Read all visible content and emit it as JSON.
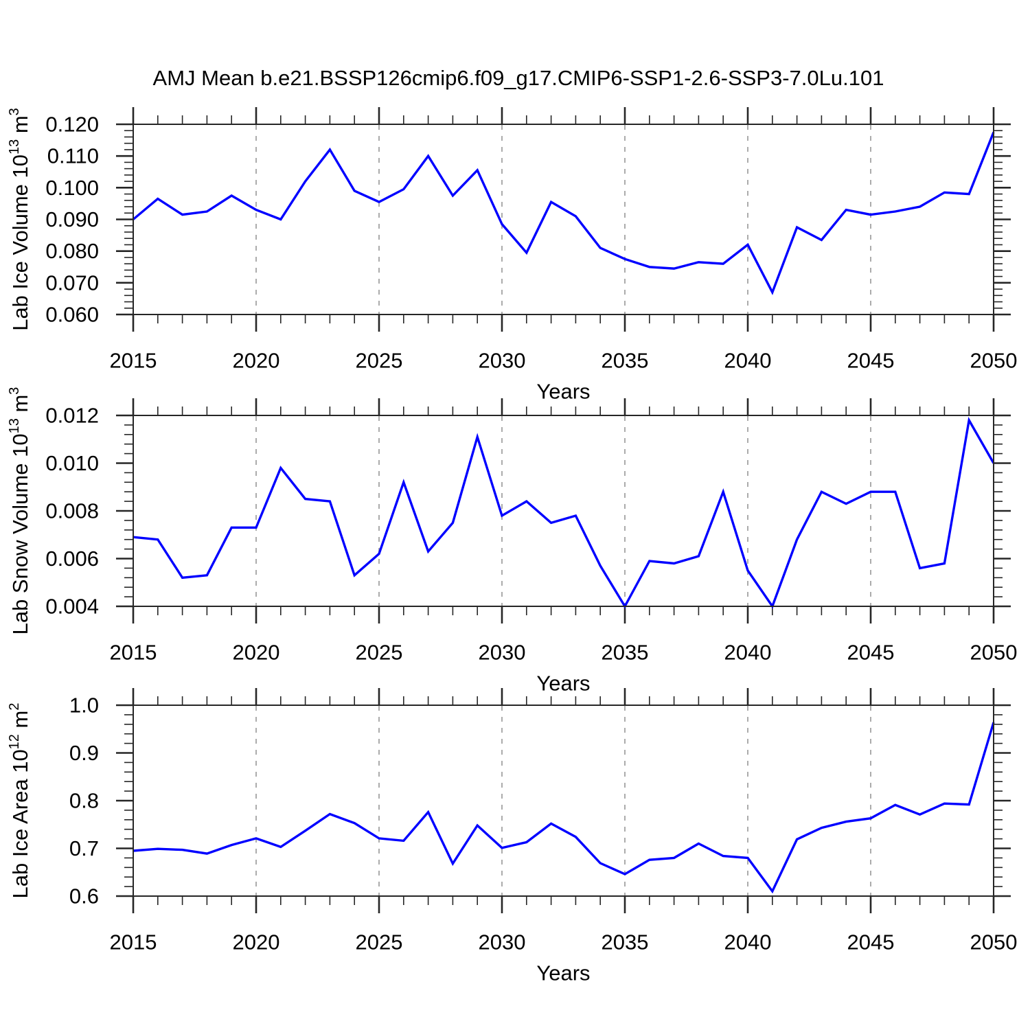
{
  "figure": {
    "title": "AMJ Mean b.e21.BSSP126cmip6.f09_g17.CMIP6-SSP1-2.6-SSP3-7.0Lu.101",
    "line_color": "#0000ff",
    "frame_color": "#262626",
    "grid_color": "#ababab"
  },
  "chart_data": [
    {
      "type": "line",
      "name": "lab-ice-volume",
      "ylabel": "Lab Ice Volume 10¹³ m³",
      "ylabel_parts": [
        {
          "text": "Lab Ice Volume 10"
        },
        {
          "text": "13",
          "sup": true
        },
        {
          "text": " m"
        },
        {
          "text": "3",
          "sup": true
        }
      ],
      "xlabel": "Years",
      "xlim": [
        2015,
        2050
      ],
      "ylim": [
        0.06,
        0.12
      ],
      "xticks": [
        2015,
        2020,
        2025,
        2030,
        2035,
        2040,
        2045,
        2050
      ],
      "xminor_step": 1,
      "grid_x": [
        2020,
        2025,
        2030,
        2035,
        2040,
        2045
      ],
      "ytick_values": [
        0.06,
        0.07,
        0.08,
        0.09,
        0.1,
        0.11,
        0.12
      ],
      "ytick_labels": [
        "0.060",
        "0.070",
        "0.080",
        "0.090",
        "0.100",
        "0.110",
        "0.120"
      ],
      "yminor_step": 0.002,
      "grid": false,
      "x": [
        2015,
        2016,
        2017,
        2018,
        2019,
        2020,
        2021,
        2022,
        2023,
        2024,
        2025,
        2026,
        2027,
        2028,
        2029,
        2030,
        2031,
        2032,
        2033,
        2034,
        2035,
        2036,
        2037,
        2038,
        2039,
        2040,
        2041,
        2042,
        2043,
        2044,
        2045,
        2046,
        2047,
        2048,
        2049,
        2050
      ],
      "values": [
        0.09,
        0.0965,
        0.0915,
        0.0925,
        0.0975,
        0.093,
        0.09,
        0.102,
        0.112,
        0.099,
        0.0955,
        0.0995,
        0.11,
        0.0975,
        0.1055,
        0.0885,
        0.0795,
        0.0955,
        0.091,
        0.081,
        0.0775,
        0.075,
        0.0745,
        0.0765,
        0.076,
        0.082,
        0.067,
        0.0875,
        0.0835,
        0.093,
        0.0915,
        0.0925,
        0.094,
        0.0985,
        0.098,
        0.1175
      ]
    },
    {
      "type": "line",
      "name": "lab-snow-volume",
      "ylabel": "Lab Snow Volume 10¹³ m³",
      "ylabel_parts": [
        {
          "text": "Lab Snow Volume 10"
        },
        {
          "text": "13",
          "sup": true
        },
        {
          "text": " m"
        },
        {
          "text": "3",
          "sup": true
        }
      ],
      "xlabel": "Years",
      "xlim": [
        2015,
        2050
      ],
      "ylim": [
        0.004,
        0.012
      ],
      "xticks": [
        2015,
        2020,
        2025,
        2030,
        2035,
        2040,
        2045,
        2050
      ],
      "xminor_step": 1,
      "grid_x": [
        2020,
        2025,
        2030,
        2035,
        2040,
        2045
      ],
      "ytick_values": [
        0.004,
        0.006,
        0.008,
        0.01,
        0.012
      ],
      "ytick_labels": [
        "0.004",
        "0.006",
        "0.008",
        "0.010",
        "0.012"
      ],
      "yminor_step": 0.0004,
      "grid": false,
      "x": [
        2015,
        2016,
        2017,
        2018,
        2019,
        2020,
        2021,
        2022,
        2023,
        2024,
        2025,
        2026,
        2027,
        2028,
        2029,
        2030,
        2031,
        2032,
        2033,
        2034,
        2035,
        2036,
        2037,
        2038,
        2039,
        2040,
        2041,
        2042,
        2043,
        2044,
        2045,
        2046,
        2047,
        2048,
        2049,
        2050
      ],
      "values": [
        0.0069,
        0.0068,
        0.0052,
        0.0053,
        0.0073,
        0.0073,
        0.0098,
        0.0085,
        0.0084,
        0.0053,
        0.0062,
        0.0092,
        0.0063,
        0.0075,
        0.0111,
        0.0078,
        0.0084,
        0.0075,
        0.0078,
        0.0057,
        0.004,
        0.0059,
        0.0058,
        0.0061,
        0.0088,
        0.0055,
        0.004,
        0.0068,
        0.0088,
        0.0083,
        0.0088,
        0.0088,
        0.0056,
        0.0058,
        0.0118,
        0.01
      ]
    },
    {
      "type": "line",
      "name": "lab-ice-area",
      "ylabel": "Lab Ice Area 10¹² m²",
      "ylabel_parts": [
        {
          "text": "Lab Ice Area 10"
        },
        {
          "text": "12",
          "sup": true
        },
        {
          "text": " m"
        },
        {
          "text": "2",
          "sup": true
        }
      ],
      "xlabel": "Years",
      "xlim": [
        2015,
        2050
      ],
      "ylim": [
        0.6,
        1.0
      ],
      "xticks": [
        2015,
        2020,
        2025,
        2030,
        2035,
        2040,
        2045,
        2050
      ],
      "xminor_step": 1,
      "grid_x": [
        2020,
        2025,
        2030,
        2035,
        2040,
        2045
      ],
      "ytick_values": [
        0.6,
        0.7,
        0.8,
        0.9,
        1.0
      ],
      "ytick_labels": [
        "0.6",
        "0.7",
        "0.8",
        "0.9",
        "1.0"
      ],
      "yminor_step": 0.02,
      "grid": false,
      "x": [
        2015,
        2016,
        2017,
        2018,
        2019,
        2020,
        2021,
        2022,
        2023,
        2024,
        2025,
        2026,
        2027,
        2028,
        2029,
        2030,
        2031,
        2032,
        2033,
        2034,
        2035,
        2036,
        2037,
        2038,
        2039,
        2040,
        2041,
        2042,
        2043,
        2044,
        2045,
        2046,
        2047,
        2048,
        2049,
        2050
      ],
      "values": [
        0.695,
        0.699,
        0.697,
        0.689,
        0.707,
        0.721,
        0.703,
        0.737,
        0.772,
        0.753,
        0.721,
        0.716,
        0.776,
        0.668,
        0.748,
        0.701,
        0.713,
        0.752,
        0.724,
        0.669,
        0.646,
        0.676,
        0.68,
        0.71,
        0.684,
        0.68,
        0.61,
        0.719,
        0.743,
        0.756,
        0.763,
        0.791,
        0.771,
        0.794,
        0.792,
        0.964
      ]
    }
  ]
}
